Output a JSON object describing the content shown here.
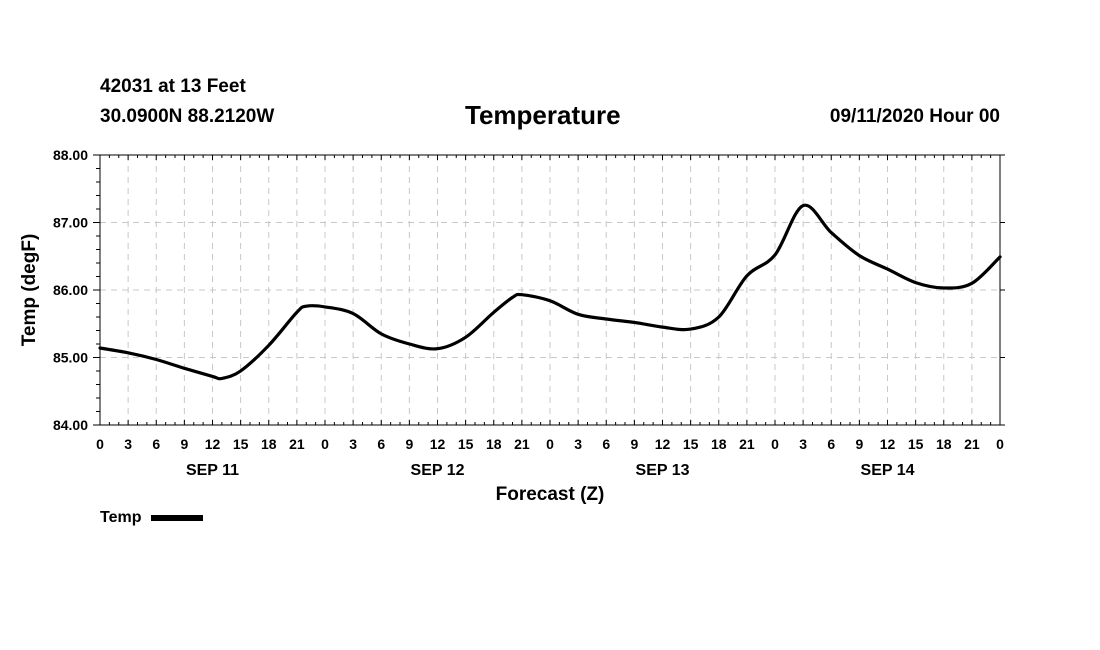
{
  "header": {
    "station": "42031 at 13 Feet",
    "coords": "30.0900N 88.2120W",
    "title": "Temperature",
    "run_time": "09/11/2020 Hour 00"
  },
  "chart_data": {
    "type": "line",
    "title": "Temperature",
    "xlabel": "Forecast (Z)",
    "ylabel": "Temp (degF)",
    "ylim": [
      84.0,
      88.0
    ],
    "y_ticks": [
      "84.00",
      "85.00",
      "86.00",
      "87.00",
      "88.00"
    ],
    "x_unit": "hours since 09/11/2020 00Z",
    "xlim": [
      0,
      96
    ],
    "x_ticks": [
      0,
      3,
      6,
      9,
      12,
      15,
      18,
      21,
      24,
      27,
      30,
      33,
      36,
      39,
      42,
      45,
      48,
      51,
      54,
      57,
      60,
      63,
      66,
      69,
      72,
      75,
      78,
      81,
      84,
      87,
      90,
      93,
      96
    ],
    "x_tick_labels": [
      "0",
      "3",
      "6",
      "9",
      "12",
      "15",
      "18",
      "21",
      "0",
      "3",
      "6",
      "9",
      "12",
      "15",
      "18",
      "21",
      "0",
      "3",
      "6",
      "9",
      "12",
      "15",
      "18",
      "21",
      "0",
      "3",
      "6",
      "9",
      "12",
      "15",
      "18",
      "21",
      "0"
    ],
    "day_labels": [
      {
        "label": "SEP 11",
        "x": 12
      },
      {
        "label": "SEP 12",
        "x": 36
      },
      {
        "label": "SEP 13",
        "x": 60
      },
      {
        "label": "SEP 14",
        "x": 84
      }
    ],
    "grid": true,
    "legend_position": "bottom-left",
    "series": [
      {
        "name": "Temp",
        "color": "#000000",
        "x": [
          0,
          3,
          6,
          9,
          12,
          13,
          15,
          18,
          21,
          22,
          24,
          27,
          30,
          33,
          36,
          39,
          42,
          44,
          45,
          48,
          51,
          54,
          57,
          60,
          63,
          66,
          69,
          72,
          75,
          78,
          81,
          84,
          87,
          90,
          93,
          96
        ],
        "values": [
          85.14,
          85.07,
          84.97,
          84.84,
          84.72,
          84.69,
          84.8,
          85.18,
          85.67,
          85.76,
          85.75,
          85.65,
          85.35,
          85.2,
          85.13,
          85.3,
          85.67,
          85.89,
          85.93,
          85.84,
          85.64,
          85.57,
          85.52,
          85.45,
          85.42,
          85.6,
          86.21,
          86.52,
          87.25,
          86.85,
          86.51,
          86.31,
          86.11,
          86.03,
          86.1,
          86.49
        ]
      }
    ]
  },
  "legend": {
    "label": "Temp"
  }
}
